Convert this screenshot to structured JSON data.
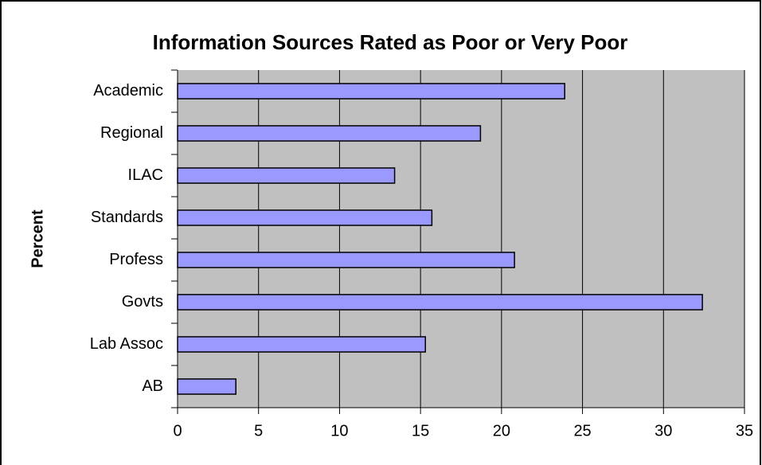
{
  "chart_data": {
    "type": "hbar",
    "title": "Information Sources Rated as Poor or Very  Poor",
    "y_label": "Percent",
    "categories": [
      "Academic",
      "Regional",
      "ILAC",
      "Standards",
      "Profess",
      "Govts",
      "Lab Assoc",
      "AB"
    ],
    "values": [
      23.9,
      18.7,
      13.4,
      15.7,
      20.8,
      32.4,
      15.3,
      3.6
    ],
    "color": "#9999ff",
    "plot_background": "#c0c0c0",
    "xlim": [
      0,
      35
    ],
    "xticks": [
      0,
      5,
      10,
      15,
      20,
      25,
      30,
      35
    ],
    "grid": true
  }
}
